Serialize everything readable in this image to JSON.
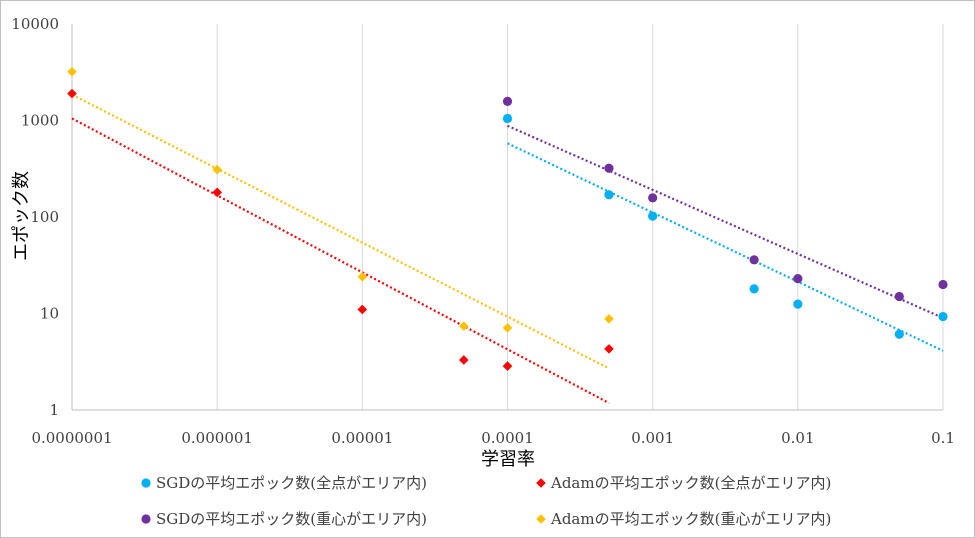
{
  "chart_data": {
    "type": "scatter",
    "xscale": "log",
    "yscale": "log",
    "xlim": [
      1e-07,
      0.1
    ],
    "ylim": [
      1,
      10000
    ],
    "xlabel": "学習率",
    "ylabel": "エポック数",
    "x_ticks": [
      "0.0000001",
      "0.000001",
      "0.00001",
      "0.0001",
      "0.001",
      "0.01",
      "0.1"
    ],
    "y_ticks": [
      "1",
      "10",
      "100",
      "1000",
      "10000"
    ],
    "grid": "vertical",
    "legend_position": "bottom",
    "series": [
      {
        "name": "SGDの平均エポック数(全点がエリア内)",
        "marker": "circle",
        "color": "#00b0f0",
        "points": [
          [
            0.0001,
            1050
          ],
          [
            0.0005,
            170
          ],
          [
            0.001,
            102
          ],
          [
            0.005,
            18
          ],
          [
            0.01,
            12.5
          ],
          [
            0.05,
            6.1
          ],
          [
            0.1,
            9.3
          ]
        ],
        "trendline": [
          [
            0.0001,
            580
          ],
          [
            0.1,
            4.1
          ]
        ]
      },
      {
        "name": "Adamの平均エポック数(全点がエリア内)",
        "marker": "diamond",
        "color": "#ff0000",
        "points": [
          [
            1e-07,
            1900
          ],
          [
            1e-06,
            180
          ],
          [
            1e-05,
            11
          ],
          [
            5e-05,
            3.3
          ],
          [
            0.0001,
            2.85
          ],
          [
            0.0005,
            4.3
          ]
        ],
        "trendline": [
          [
            1e-07,
            1050
          ],
          [
            0.0005,
            1.18
          ]
        ]
      },
      {
        "name": "SGDの平均エポック数(重心がエリア内)",
        "marker": "circle",
        "color": "#7030a0",
        "points": [
          [
            0.0001,
            1580
          ],
          [
            0.0005,
            320
          ],
          [
            0.001,
            158
          ],
          [
            0.005,
            36
          ],
          [
            0.01,
            23
          ],
          [
            0.05,
            15
          ],
          [
            0.1,
            20
          ]
        ],
        "trendline": [
          [
            0.0001,
            880
          ],
          [
            0.1,
            9.0
          ]
        ]
      },
      {
        "name": "Adamの平均エポック数(重心がエリア内)",
        "marker": "diamond",
        "color": "#ffc000",
        "points": [
          [
            1e-07,
            3200
          ],
          [
            1e-06,
            310
          ],
          [
            1e-05,
            24
          ],
          [
            5e-05,
            7.4
          ],
          [
            0.0001,
            7.1
          ],
          [
            0.0005,
            8.8
          ]
        ],
        "trendline": [
          [
            1e-07,
            1850
          ],
          [
            0.0005,
            2.7
          ]
        ]
      }
    ]
  }
}
